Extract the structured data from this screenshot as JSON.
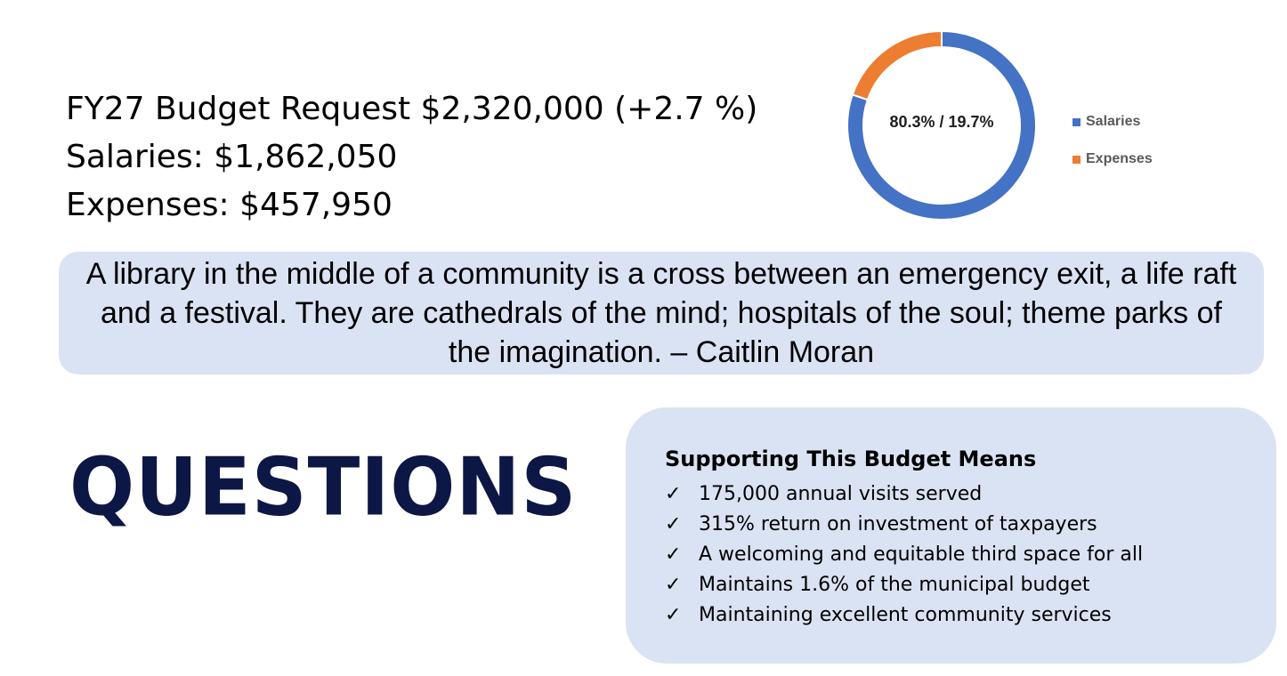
{
  "budget": {
    "request_line": "FY27 Budget Request $2,320,000 (+2.7 %)",
    "salaries_line": "Salaries: $1,862,050",
    "expenses_line": "Expenses: $457,950"
  },
  "chart_data": {
    "type": "pie",
    "donut": true,
    "center_label": "80.3% / 19.7%",
    "categories": [
      "Salaries",
      "Expenses"
    ],
    "values": [
      80.3,
      19.7
    ],
    "colors": [
      "#4472c4",
      "#ed7d31"
    ],
    "legend_position": "right"
  },
  "quote": {
    "text": "A library in the middle of a community is a cross between an emergency exit, a life raft and a festival. They are cathedrals of the mind; hospitals of the soul; theme parks of the imagination. – Caitlin Moran"
  },
  "questions_heading": "QUESTIONS",
  "support": {
    "title": "Supporting This Budget Means",
    "check_glyph": "✓",
    "items": [
      "175,000 annual visits served",
      "315% return on investment of taxpayers",
      "A welcoming and equitable third space for all",
      "Maintains 1.6% of the municipal budget",
      "Maintaining excellent community services"
    ]
  }
}
